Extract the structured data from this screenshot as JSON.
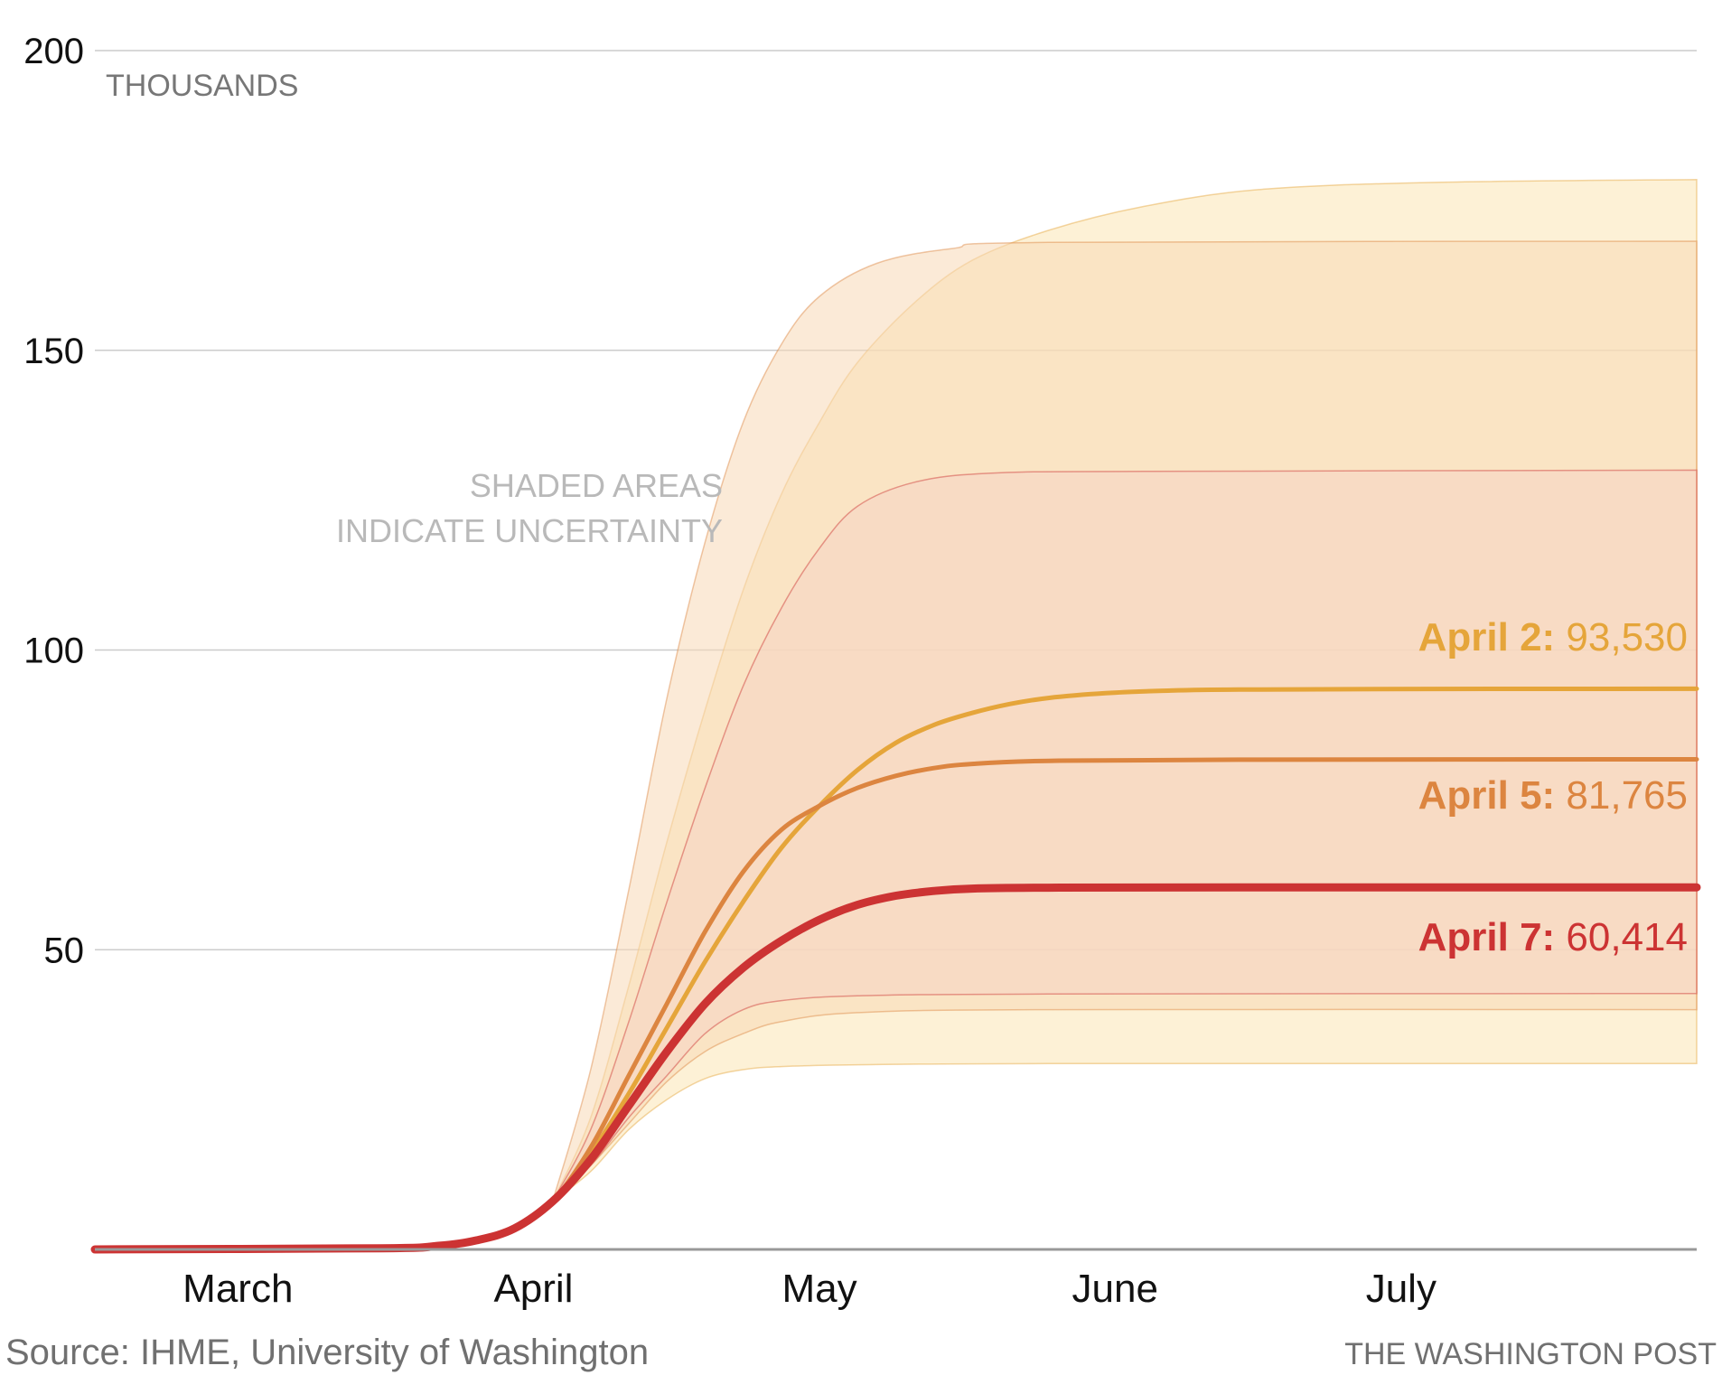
{
  "chart_data": {
    "type": "line",
    "y_unit": "THOUSANDS",
    "ylim": [
      0,
      200
    ],
    "y_ticks": [
      {
        "value": 50,
        "label": "50"
      },
      {
        "value": 100,
        "label": "100"
      },
      {
        "value": 150,
        "label": "150"
      },
      {
        "value": 200,
        "label": "200"
      }
    ],
    "x_ticks": [
      {
        "value": 15,
        "label": "March"
      },
      {
        "value": 46,
        "label": "April"
      },
      {
        "value": 76,
        "label": "May"
      },
      {
        "value": 107,
        "label": "June"
      },
      {
        "value": 137,
        "label": "July"
      }
    ],
    "xlim": [
      0,
      168
    ],
    "annotation": [
      "SHADED AREAS",
      "INDICATE UNCERTAINTY"
    ],
    "grid": true,
    "series": [
      {
        "name": "April 2",
        "label_value": "93,530",
        "color": "#e5a53a",
        "band_color": "#fbe6b4",
        "points": [
          [
            0,
            0
          ],
          [
            30,
            0.2
          ],
          [
            36,
            0.6
          ],
          [
            40,
            1.5
          ],
          [
            44,
            3.5
          ],
          [
            48,
            8
          ],
          [
            52,
            16
          ],
          [
            56,
            26
          ],
          [
            60,
            37
          ],
          [
            64,
            48
          ],
          [
            68,
            58
          ],
          [
            72,
            67
          ],
          [
            76,
            74
          ],
          [
            80,
            80
          ],
          [
            84,
            84.5
          ],
          [
            88,
            87.5
          ],
          [
            92,
            89.5
          ],
          [
            96,
            91
          ],
          [
            100,
            92
          ],
          [
            106,
            92.8
          ],
          [
            112,
            93.2
          ],
          [
            120,
            93.4
          ],
          [
            140,
            93.5
          ],
          [
            168,
            93.53
          ]
        ],
        "band_upper": [
          [
            48,
            8
          ],
          [
            52,
            22
          ],
          [
            56,
            44
          ],
          [
            60,
            68
          ],
          [
            64,
            90
          ],
          [
            68,
            110
          ],
          [
            72,
            126
          ],
          [
            76,
            138
          ],
          [
            80,
            148
          ],
          [
            86,
            158
          ],
          [
            92,
            165
          ],
          [
            100,
            170
          ],
          [
            110,
            174
          ],
          [
            122,
            176.8
          ],
          [
            140,
            178
          ],
          [
            168,
            178.5
          ]
        ],
        "band_lower": [
          [
            48,
            8
          ],
          [
            52,
            13
          ],
          [
            56,
            20
          ],
          [
            60,
            25
          ],
          [
            64,
            28.5
          ],
          [
            68,
            30
          ],
          [
            72,
            30.5
          ],
          [
            80,
            30.8
          ],
          [
            100,
            31
          ],
          [
            168,
            31
          ]
        ]
      },
      {
        "name": "April 5",
        "label_value": "81,765",
        "color": "#dc8540",
        "band_color": "#f8d8b6",
        "points": [
          [
            0,
            0
          ],
          [
            30,
            0.2
          ],
          [
            36,
            0.6
          ],
          [
            40,
            1.5
          ],
          [
            44,
            3.5
          ],
          [
            48,
            8
          ],
          [
            52,
            17
          ],
          [
            56,
            29
          ],
          [
            60,
            41
          ],
          [
            64,
            53
          ],
          [
            68,
            63
          ],
          [
            72,
            70
          ],
          [
            76,
            74
          ],
          [
            80,
            77
          ],
          [
            84,
            79
          ],
          [
            88,
            80.3
          ],
          [
            92,
            81
          ],
          [
            100,
            81.5
          ],
          [
            120,
            81.7
          ],
          [
            168,
            81.77
          ]
        ],
        "band_upper": [
          [
            48,
            8
          ],
          [
            52,
            30
          ],
          [
            56,
            60
          ],
          [
            60,
            92
          ],
          [
            64,
            118
          ],
          [
            68,
            138
          ],
          [
            72,
            151
          ],
          [
            76,
            159
          ],
          [
            82,
            164.5
          ],
          [
            90,
            167
          ],
          [
            100,
            168
          ],
          [
            168,
            168.2
          ]
        ],
        "band_lower": [
          [
            48,
            8
          ],
          [
            52,
            14
          ],
          [
            56,
            21
          ],
          [
            60,
            28
          ],
          [
            64,
            33
          ],
          [
            68,
            36
          ],
          [
            72,
            38
          ],
          [
            80,
            39.5
          ],
          [
            100,
            40
          ],
          [
            168,
            40
          ]
        ]
      },
      {
        "name": "April 7",
        "label_value": "60,414",
        "color": "#cc3333",
        "band_color": "#f6d4c4",
        "points": [
          [
            0,
            0
          ],
          [
            30,
            0.2
          ],
          [
            36,
            0.6
          ],
          [
            40,
            1.5
          ],
          [
            44,
            3.5
          ],
          [
            48,
            8
          ],
          [
            52,
            15
          ],
          [
            56,
            24
          ],
          [
            60,
            33
          ],
          [
            64,
            41
          ],
          [
            68,
            47
          ],
          [
            72,
            51.5
          ],
          [
            76,
            55
          ],
          [
            80,
            57.5
          ],
          [
            84,
            59
          ],
          [
            88,
            59.8
          ],
          [
            92,
            60.2
          ],
          [
            100,
            60.35
          ],
          [
            120,
            60.4
          ],
          [
            168,
            60.414
          ]
        ],
        "band_upper": [
          [
            48,
            8
          ],
          [
            52,
            20
          ],
          [
            56,
            38
          ],
          [
            60,
            58
          ],
          [
            64,
            77
          ],
          [
            68,
            94
          ],
          [
            72,
            107
          ],
          [
            76,
            117
          ],
          [
            80,
            124
          ],
          [
            86,
            128
          ],
          [
            94,
            129.5
          ],
          [
            110,
            129.8
          ],
          [
            168,
            130
          ]
        ],
        "band_lower": [
          [
            48,
            8
          ],
          [
            52,
            14
          ],
          [
            56,
            22
          ],
          [
            60,
            29
          ],
          [
            64,
            36
          ],
          [
            68,
            40
          ],
          [
            72,
            41.5
          ],
          [
            80,
            42.3
          ],
          [
            100,
            42.6
          ],
          [
            168,
            42.7
          ]
        ]
      }
    ]
  },
  "footer": {
    "source": "Source: IHME, University of Washington",
    "credit": "THE WASHINGTON POST"
  }
}
